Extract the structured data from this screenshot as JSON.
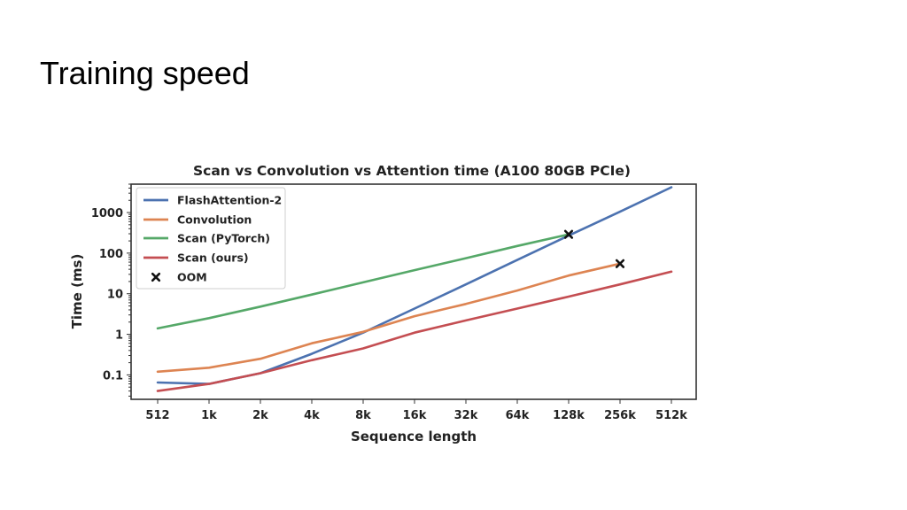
{
  "slide": {
    "title": "Training speed"
  },
  "chart_data": {
    "type": "line",
    "title": "Scan vs Convolution vs Attention time (A100 80GB PCIe)",
    "xlabel": "Sequence length",
    "ylabel": "Time (ms)",
    "y_scale": "log",
    "categories": [
      "512",
      "1k",
      "2k",
      "4k",
      "8k",
      "16k",
      "32k",
      "64k",
      "128k",
      "256k",
      "512k"
    ],
    "y_ticks": [
      {
        "label": "0.1",
        "value": 0.1
      },
      {
        "label": "1",
        "value": 1
      },
      {
        "label": "10",
        "value": 10
      },
      {
        "label": "100",
        "value": 100
      },
      {
        "label": "1000",
        "value": 1000
      }
    ],
    "ylim": [
      0.025,
      5000
    ],
    "grid": false,
    "legend_position": "top-left",
    "series": [
      {
        "name": "FlashAttention-2",
        "color": "#4C72B0",
        "values": [
          0.065,
          0.06,
          0.11,
          0.33,
          1.1,
          4.3,
          17,
          68,
          270,
          1050,
          4200
        ]
      },
      {
        "name": "Convolution",
        "color": "#DD8452",
        "values": [
          0.12,
          0.15,
          0.25,
          0.6,
          1.15,
          2.8,
          5.6,
          12,
          28,
          55,
          null
        ]
      },
      {
        "name": "Scan (PyTorch)",
        "color": "#55A868",
        "values": [
          1.4,
          2.5,
          4.8,
          9.5,
          19,
          38,
          75,
          150,
          290,
          null,
          null
        ]
      },
      {
        "name": "Scan (ours)",
        "color": "#C44E52",
        "values": [
          0.04,
          0.06,
          0.11,
          0.23,
          0.45,
          1.1,
          2.2,
          4.3,
          8.5,
          17,
          35
        ]
      }
    ],
    "oom": {
      "label": "OOM",
      "points": [
        {
          "x": "128k",
          "y": 290
        },
        {
          "x": "256k",
          "y": 55
        }
      ]
    }
  }
}
